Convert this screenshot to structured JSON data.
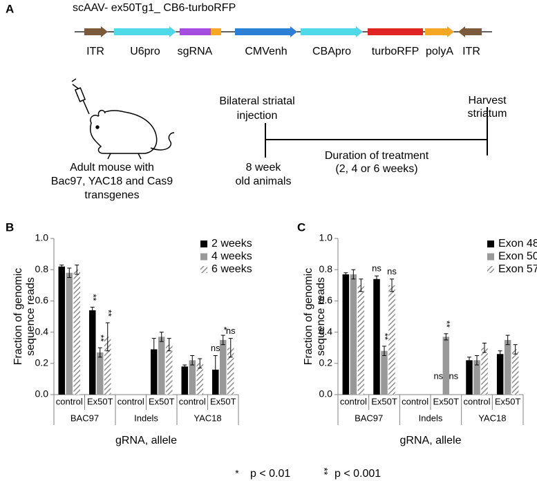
{
  "panel_a": {
    "label": "A",
    "construct_title": "scAAV- ex50Tg1_ CB6-turboRFP",
    "elements": [
      "ITR",
      "U6pro",
      "sgRNA",
      "CMVenh",
      "CBApro",
      "turboRFP",
      "polyA",
      "ITR"
    ],
    "mouse_caption": [
      "Adult mouse with",
      "Bac97, YAC18 and Cas9",
      "transgenes"
    ],
    "timeline": {
      "start_event": [
        "Bilateral striatal",
        "injection"
      ],
      "end_event": [
        "Harvest",
        "striatum"
      ],
      "duration": [
        "Duration of treatment",
        "(2, 4 or 6 weeks)"
      ],
      "start_age": [
        "8 week",
        "old animals"
      ]
    }
  },
  "chart_data": [
    {
      "type": "bar",
      "panel_label": "B",
      "ylabel": [
        "Fraction of genomic",
        "sequence reads"
      ],
      "xlabel": "gRNA, allele",
      "categories": [
        "control",
        "Ex50T",
        "control",
        "Ex50T",
        "control",
        "Ex50T"
      ],
      "groups": [
        "BAC97",
        "Indels",
        "YAC18"
      ],
      "ylim": [
        0,
        1
      ],
      "yticks": [
        {
          "value": 0,
          "label": "0.0"
        },
        0.2,
        0.4,
        0.6,
        0.8,
        {
          "value": 1,
          "label": "1.0"
        }
      ],
      "legend": "upper right",
      "series": [
        {
          "name": "2 weeks",
          "color": "#000000",
          "values": [
            0.82,
            0.54,
            null,
            0.29,
            0.18,
            0.16
          ],
          "errors": [
            0.01,
            0.02,
            null,
            0.07,
            0.01,
            0.09
          ]
        },
        {
          "name": "4 weeks",
          "color": "#999999",
          "values": [
            0.78,
            0.27,
            null,
            0.37,
            0.22,
            0.35
          ],
          "errors": [
            0.03,
            0.03,
            null,
            0.03,
            0.03,
            0.03
          ]
        },
        {
          "name": "6 weeks",
          "color": "#8c8c8c",
          "hatch": true,
          "values": [
            0.8,
            0.37,
            null,
            0.32,
            0.2,
            0.3
          ],
          "errors": [
            0.03,
            0.09,
            null,
            0.04,
            0.03,
            0.06
          ]
        }
      ],
      "annotations": [
        {
          "text": "**",
          "series": 0,
          "index": 1
        },
        {
          "text": "**",
          "series": 1,
          "index": 1
        },
        {
          "text": "**",
          "series": 2,
          "index": 1
        },
        {
          "text": "ns",
          "series": 0,
          "index": 5
        },
        {
          "text": "*",
          "series": 1,
          "index": 5
        },
        {
          "text": "ns",
          "series": 2,
          "index": 5
        }
      ]
    },
    {
      "type": "bar",
      "panel_label": "C",
      "ylabel": [
        "Fraction of genomic",
        "sequence reads"
      ],
      "xlabel": "gRNA, allele",
      "categories": [
        "control",
        "Ex50T",
        "control",
        "Ex50T",
        "control",
        "Ex50T"
      ],
      "groups": [
        "BAC97",
        "Indels",
        "YAC18"
      ],
      "ylim": [
        0,
        1
      ],
      "yticks": [
        {
          "value": 0,
          "label": "0.0"
        },
        0.2,
        0.4,
        0.6,
        0.8,
        {
          "value": 1,
          "label": "1.0"
        }
      ],
      "legend": "upper right",
      "series": [
        {
          "name": "Exon 48",
          "color": "#000000",
          "values": [
            0.77,
            0.74,
            null,
            null,
            0.22,
            0.26
          ],
          "errors": [
            0.01,
            0.02,
            null,
            null,
            0.02,
            0.02
          ]
        },
        {
          "name": "Exon 50",
          "color": "#999999",
          "values": [
            0.77,
            0.28,
            null,
            0.37,
            0.22,
            0.35
          ],
          "errors": [
            0.03,
            0.03,
            null,
            0.02,
            0.03,
            0.03
          ]
        },
        {
          "name": "Exon 57",
          "color": "#8c8c8c",
          "hatch": true,
          "values": [
            0.7,
            0.7,
            null,
            null,
            0.3,
            0.29
          ],
          "errors": [
            0.04,
            0.04,
            null,
            null,
            0.03,
            0.03
          ]
        }
      ],
      "annotations": [
        {
          "text": "ns",
          "series": 0,
          "index": 1
        },
        {
          "text": "**",
          "series": 1,
          "index": 1
        },
        {
          "text": "ns",
          "series": 2,
          "index": 1
        },
        {
          "text": "ns",
          "series": 0,
          "index": 3
        },
        {
          "text": "**",
          "series": 1,
          "index": 3
        },
        {
          "text": "ns",
          "series": 2,
          "index": 3
        }
      ]
    }
  ],
  "footnote": [
    {
      "symbol": "*",
      "text": "p < 0.01"
    },
    {
      "symbol": "**",
      "text": "p < 0.001"
    }
  ]
}
